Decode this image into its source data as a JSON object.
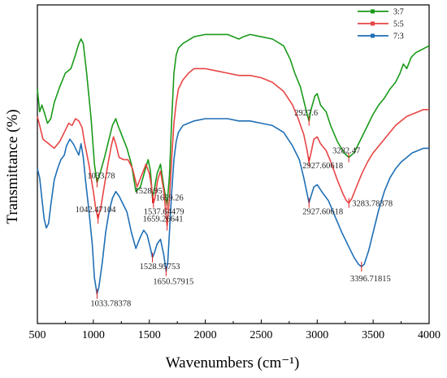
{
  "chart_data": {
    "type": "line",
    "xlabel": "Wavenumbers (cm⁻¹)",
    "ylabel": "Transmittance (%)",
    "xlim": [
      500,
      4000
    ],
    "xticks": [
      500,
      1000,
      1500,
      2000,
      2500,
      3000,
      3500,
      4000
    ],
    "grid": false,
    "legend_position": "top-right",
    "series": [
      {
        "name": "3:7",
        "color": "#1a9a1a",
        "points": [
          [
            500,
            73
          ],
          [
            520,
            63
          ],
          [
            540,
            66
          ],
          [
            560,
            63
          ],
          [
            590,
            58
          ],
          [
            620,
            60
          ],
          [
            650,
            67
          ],
          [
            700,
            74
          ],
          [
            750,
            80
          ],
          [
            800,
            82
          ],
          [
            840,
            88
          ],
          [
            870,
            93
          ],
          [
            890,
            95
          ],
          [
            910,
            93
          ],
          [
            940,
            80
          ],
          [
            980,
            60
          ],
          [
            1010,
            40
          ],
          [
            1033,
            32
          ],
          [
            1060,
            36
          ],
          [
            1100,
            43
          ],
          [
            1140,
            51
          ],
          [
            1170,
            57
          ],
          [
            1200,
            60
          ],
          [
            1220,
            57
          ],
          [
            1260,
            52
          ],
          [
            1300,
            47
          ],
          [
            1340,
            40
          ],
          [
            1380,
            28
          ],
          [
            1420,
            30
          ],
          [
            1460,
            37
          ],
          [
            1490,
            42
          ],
          [
            1510,
            37
          ],
          [
            1528,
            25
          ],
          [
            1545,
            29
          ],
          [
            1570,
            36
          ],
          [
            1600,
            40
          ],
          [
            1630,
            30
          ],
          [
            1659,
            22
          ],
          [
            1680,
            35
          ],
          [
            1700,
            60
          ],
          [
            1720,
            80
          ],
          [
            1740,
            88
          ],
          [
            1760,
            91
          ],
          [
            1800,
            93
          ],
          [
            1900,
            96
          ],
          [
            2000,
            97
          ],
          [
            2100,
            97
          ],
          [
            2200,
            97
          ],
          [
            2300,
            95
          ],
          [
            2340,
            96
          ],
          [
            2400,
            97
          ],
          [
            2500,
            96
          ],
          [
            2600,
            95
          ],
          [
            2700,
            92
          ],
          [
            2760,
            86
          ],
          [
            2800,
            80
          ],
          [
            2850,
            74
          ],
          [
            2890,
            66
          ],
          [
            2910,
            62
          ],
          [
            2927,
            59
          ],
          [
            2945,
            64
          ],
          [
            2980,
            70
          ],
          [
            3000,
            71
          ],
          [
            3030,
            66
          ],
          [
            3080,
            63
          ],
          [
            3120,
            57
          ],
          [
            3180,
            50
          ],
          [
            3240,
            45
          ],
          [
            3282,
            43
          ],
          [
            3330,
            45
          ],
          [
            3380,
            50
          ],
          [
            3450,
            57
          ],
          [
            3500,
            62
          ],
          [
            3550,
            66
          ],
          [
            3600,
            69
          ],
          [
            3650,
            73
          ],
          [
            3700,
            76
          ],
          [
            3740,
            80
          ],
          [
            3770,
            84
          ],
          [
            3800,
            82
          ],
          [
            3840,
            87
          ],
          [
            3880,
            89
          ],
          [
            3920,
            90
          ],
          [
            3960,
            91
          ],
          [
            4000,
            92
          ]
        ]
      },
      {
        "name": "5:5",
        "color": "#e84545",
        "points": [
          [
            500,
            61
          ],
          [
            520,
            57
          ],
          [
            550,
            51
          ],
          [
            600,
            49
          ],
          [
            650,
            47
          ],
          [
            700,
            50
          ],
          [
            740,
            54
          ],
          [
            780,
            58
          ],
          [
            810,
            57
          ],
          [
            840,
            60
          ],
          [
            870,
            59
          ],
          [
            900,
            56
          ],
          [
            920,
            50
          ],
          [
            960,
            40
          ],
          [
            1000,
            28
          ],
          [
            1020,
            21
          ],
          [
            1042,
            16
          ],
          [
            1070,
            22
          ],
          [
            1100,
            31
          ],
          [
            1130,
            40
          ],
          [
            1160,
            48
          ],
          [
            1180,
            52
          ],
          [
            1200,
            49
          ],
          [
            1230,
            43
          ],
          [
            1270,
            42
          ],
          [
            1310,
            42
          ],
          [
            1350,
            38
          ],
          [
            1390,
            30
          ],
          [
            1430,
            35
          ],
          [
            1470,
            40
          ],
          [
            1500,
            36
          ],
          [
            1520,
            30
          ],
          [
            1537,
            23
          ],
          [
            1550,
            25
          ],
          [
            1575,
            33
          ],
          [
            1600,
            37
          ],
          [
            1630,
            28
          ],
          [
            1659,
            13
          ],
          [
            1680,
            25
          ],
          [
            1700,
            43
          ],
          [
            1720,
            58
          ],
          [
            1740,
            67
          ],
          [
            1760,
            73
          ],
          [
            1800,
            77
          ],
          [
            1850,
            80
          ],
          [
            1900,
            82
          ],
          [
            2000,
            82
          ],
          [
            2100,
            81
          ],
          [
            2200,
            80
          ],
          [
            2300,
            79
          ],
          [
            2400,
            79
          ],
          [
            2500,
            78
          ],
          [
            2600,
            76
          ],
          [
            2700,
            72
          ],
          [
            2780,
            66
          ],
          [
            2830,
            60
          ],
          [
            2880,
            53
          ],
          [
            2910,
            46
          ],
          [
            2927,
            41
          ],
          [
            2945,
            45
          ],
          [
            2970,
            51
          ],
          [
            3000,
            52
          ],
          [
            3030,
            49
          ],
          [
            3080,
            46
          ],
          [
            3130,
            40
          ],
          [
            3180,
            33
          ],
          [
            3230,
            27
          ],
          [
            3260,
            24
          ],
          [
            3283,
            23
          ],
          [
            3310,
            25
          ],
          [
            3350,
            30
          ],
          [
            3400,
            36
          ],
          [
            3450,
            41
          ],
          [
            3500,
            45
          ],
          [
            3550,
            48
          ],
          [
            3600,
            51
          ],
          [
            3650,
            54
          ],
          [
            3700,
            57
          ],
          [
            3750,
            59
          ],
          [
            3800,
            61
          ],
          [
            3850,
            62
          ],
          [
            3900,
            63
          ],
          [
            3950,
            64
          ],
          [
            4000,
            64
          ]
        ]
      },
      {
        "name": "7:3",
        "color": "#1f6fb5",
        "points": [
          [
            500,
            38
          ],
          [
            520,
            34
          ],
          [
            540,
            25
          ],
          [
            560,
            16
          ],
          [
            580,
            12
          ],
          [
            600,
            14
          ],
          [
            620,
            22
          ],
          [
            650,
            33
          ],
          [
            680,
            38
          ],
          [
            710,
            42
          ],
          [
            740,
            44
          ],
          [
            760,
            48
          ],
          [
            790,
            51
          ],
          [
            820,
            49
          ],
          [
            850,
            46
          ],
          [
            870,
            44
          ],
          [
            890,
            49
          ],
          [
            910,
            43
          ],
          [
            930,
            33
          ],
          [
            960,
            20
          ],
          [
            990,
            5
          ],
          [
            1010,
            -10
          ],
          [
            1033,
            -17
          ],
          [
            1050,
            -14
          ],
          [
            1080,
            -3
          ],
          [
            1110,
            10
          ],
          [
            1140,
            19
          ],
          [
            1170,
            25
          ],
          [
            1200,
            28
          ],
          [
            1230,
            26
          ],
          [
            1260,
            23
          ],
          [
            1300,
            19
          ],
          [
            1340,
            10
          ],
          [
            1380,
            3
          ],
          [
            1420,
            8
          ],
          [
            1450,
            11
          ],
          [
            1480,
            9
          ],
          [
            1510,
            3
          ],
          [
            1528,
            -1
          ],
          [
            1545,
            1
          ],
          [
            1570,
            5
          ],
          [
            1600,
            7
          ],
          [
            1630,
            0
          ],
          [
            1650,
            -7
          ],
          [
            1665,
            -3
          ],
          [
            1680,
            10
          ],
          [
            1700,
            28
          ],
          [
            1720,
            42
          ],
          [
            1740,
            50
          ],
          [
            1760,
            54
          ],
          [
            1800,
            57
          ],
          [
            1900,
            59
          ],
          [
            2000,
            60
          ],
          [
            2100,
            60
          ],
          [
            2200,
            60
          ],
          [
            2300,
            59
          ],
          [
            2400,
            59
          ],
          [
            2500,
            58
          ],
          [
            2600,
            57
          ],
          [
            2700,
            54
          ],
          [
            2780,
            48
          ],
          [
            2840,
            42
          ],
          [
            2880,
            34
          ],
          [
            2910,
            27
          ],
          [
            2927,
            23
          ],
          [
            2945,
            26
          ],
          [
            2970,
            30
          ],
          [
            3000,
            31
          ],
          [
            3040,
            28
          ],
          [
            3100,
            24
          ],
          [
            3160,
            17
          ],
          [
            3220,
            10
          ],
          [
            3280,
            4
          ],
          [
            3330,
            -1
          ],
          [
            3370,
            -4
          ],
          [
            3396,
            -5
          ],
          [
            3420,
            -4
          ],
          [
            3460,
            2
          ],
          [
            3500,
            10
          ],
          [
            3550,
            20
          ],
          [
            3600,
            28
          ],
          [
            3650,
            34
          ],
          [
            3700,
            38
          ],
          [
            3750,
            41
          ],
          [
            3800,
            43
          ],
          [
            3850,
            45
          ],
          [
            3900,
            46
          ],
          [
            3950,
            47
          ],
          [
            4000,
            47
          ]
        ]
      }
    ],
    "annotations": [
      {
        "label": "1033.78",
        "x": 1033,
        "y": 32,
        "series": "3:7",
        "dx": -12,
        "dy": -5
      },
      {
        "label": "1528.95",
        "x": 1528,
        "y": 25,
        "series": "3:7",
        "dx": -22,
        "dy": -6
      },
      {
        "label": "1659.26",
        "x": 1659,
        "y": 22,
        "series": "3:7",
        "dx": -14,
        "dy": -6
      },
      {
        "label": "2927.6",
        "x": 2927,
        "y": 59,
        "series": "3:7",
        "dx": -18,
        "dy": -7
      },
      {
        "label": "3282.47",
        "x": 3282,
        "y": 43,
        "series": "3:7",
        "dx": -20,
        "dy": -5
      },
      {
        "label": "1042.47104",
        "x": 1042,
        "y": 16,
        "series": "5:5",
        "dx": -28,
        "dy": -8
      },
      {
        "label": "1537.64479",
        "x": 1537,
        "y": 23,
        "series": "5:5",
        "dx": -12,
        "dy": 14
      },
      {
        "label": "1659.26641",
        "x": 1659,
        "y": 13,
        "series": "5:5",
        "dx": -30,
        "dy": -5
      },
      {
        "label": "2927.60618",
        "x": 2927,
        "y": 41,
        "series": "5:5",
        "dx": -8,
        "dy": 8
      },
      {
        "label": "3283.78378",
        "x": 3283,
        "y": 23,
        "series": "5:5",
        "dx": 4,
        "dy": 4
      },
      {
        "label": "1033.78378",
        "x": 1033,
        "y": -17,
        "series": "7:3",
        "dx": -8,
        "dy": 15
      },
      {
        "label": "1528.95753",
        "x": 1528,
        "y": -1,
        "series": "7:3",
        "dx": -16,
        "dy": 14
      },
      {
        "label": "1650.57915",
        "x": 1650,
        "y": -7,
        "series": "7:3",
        "dx": -16,
        "dy": 16
      },
      {
        "label": "2927.60618",
        "x": 2927,
        "y": 23,
        "series": "7:3",
        "dx": -8,
        "dy": 14
      },
      {
        "label": "3396.71815",
        "x": 3396,
        "y": -5,
        "series": "7:3",
        "dx": -14,
        "dy": 18
      }
    ]
  }
}
